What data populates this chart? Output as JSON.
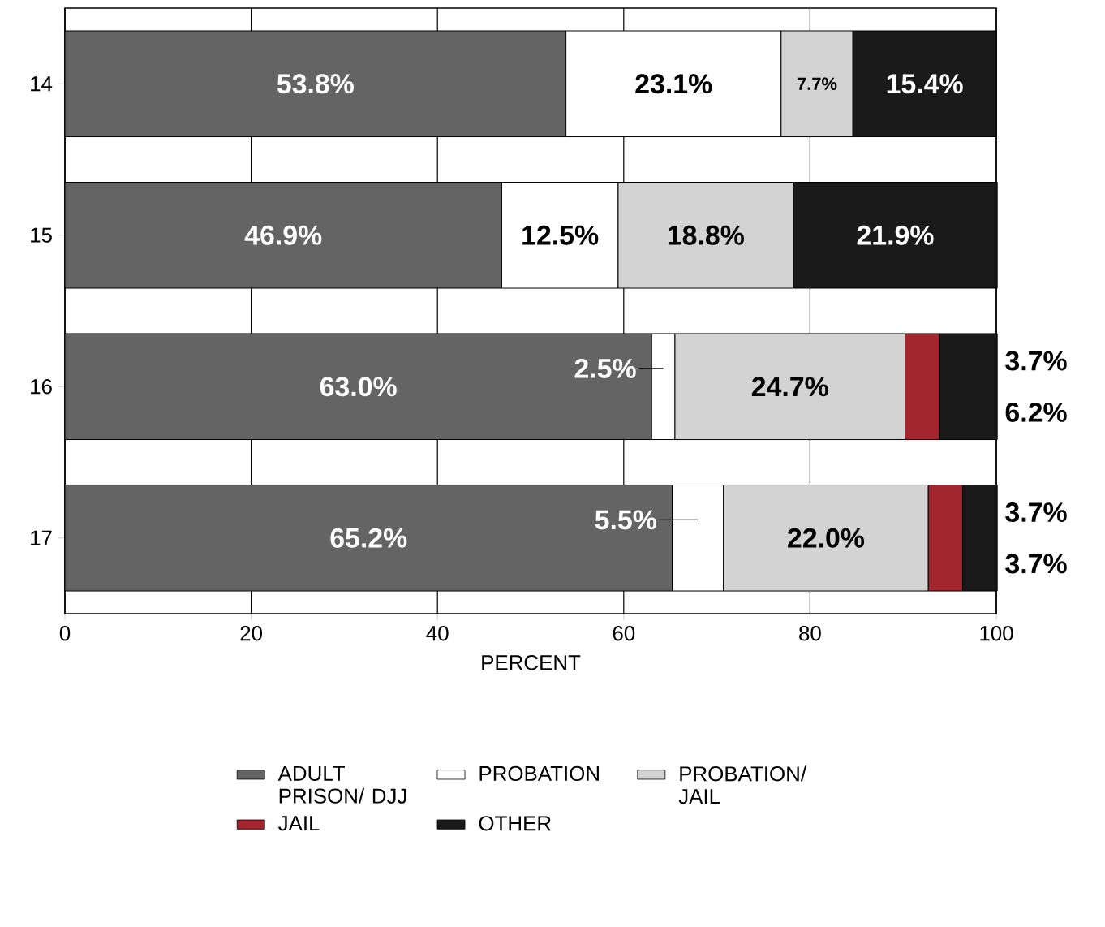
{
  "chart_data": {
    "type": "bar",
    "orientation": "horizontal",
    "stacked": true,
    "categories": [
      "14",
      "15",
      "16",
      "17"
    ],
    "series": [
      {
        "name": "ADULT PRISON/ DJJ",
        "color": "#646464",
        "values": [
          53.8,
          46.9,
          63.0,
          65.2
        ],
        "value_labels": [
          "53.8%",
          "46.9%",
          "63.0%",
          "65.2%"
        ]
      },
      {
        "name": "PROBATION",
        "color": "#ffffff",
        "values": [
          23.1,
          12.5,
          2.5,
          5.5
        ],
        "value_labels": [
          "23.1%",
          "12.5%",
          "2.5%",
          "5.5%"
        ]
      },
      {
        "name": "PROBATION/ JAIL",
        "color": "#d3d3d3",
        "values": [
          7.7,
          18.8,
          24.7,
          22.0
        ],
        "value_labels": [
          "7.7%",
          "18.8%",
          "24.7%",
          "22.0%"
        ]
      },
      {
        "name": "JAIL",
        "color": "#a3262e",
        "values": [
          null,
          null,
          3.7,
          3.7
        ],
        "value_labels": [
          null,
          null,
          "3.7%",
          "3.7%"
        ]
      },
      {
        "name": "OTHER",
        "color": "#1a1a1a",
        "values": [
          15.4,
          21.9,
          6.2,
          3.7
        ],
        "value_labels": [
          "15.4%",
          "21.9%",
          "6.2%",
          "3.7%"
        ]
      }
    ],
    "xlabel": "PERCENT",
    "xlim": [
      0,
      100
    ],
    "xticks": [
      0,
      20,
      40,
      60,
      80,
      100
    ],
    "grid": "x",
    "legend": "bottom"
  }
}
